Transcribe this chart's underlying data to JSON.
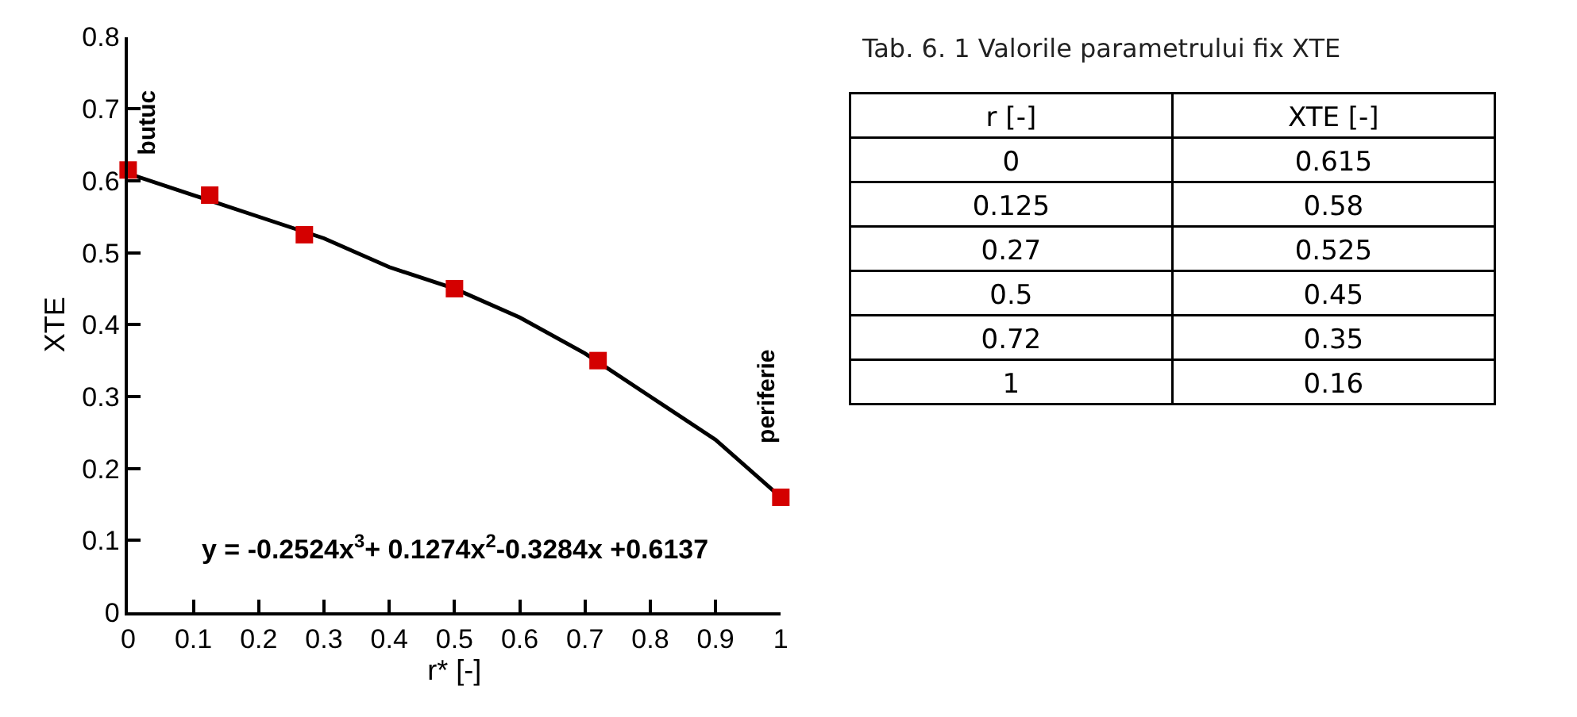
{
  "chart_data": [
    {
      "type": "scatter",
      "xlabel": "r* [-]",
      "ylabel": "XTE",
      "xlim": [
        0,
        1
      ],
      "xticks": [
        0,
        0.1,
        0.2,
        0.3,
        0.4,
        0.5,
        0.6,
        0.7,
        0.8,
        0.9,
        1
      ],
      "ylim": [
        0,
        0.8
      ],
      "yticks": [
        0,
        0.1,
        0.2,
        0.3,
        0.4,
        0.5,
        0.6,
        0.7,
        0.8
      ],
      "series": [
        {
          "type": "line",
          "color": "#000000",
          "marker": "none",
          "line_style": "solid",
          "x": [
            0,
            0.1,
            0.2,
            0.3,
            0.4,
            0.5,
            0.6,
            0.7,
            0.8,
            0.9,
            1
          ],
          "values": [
            0.61,
            0.58,
            0.55,
            0.52,
            0.48,
            0.45,
            0.41,
            0.36,
            0.3,
            0.24,
            0.16
          ]
        },
        {
          "type": "scatter",
          "color": "#d40000",
          "marker": "square",
          "x": [
            0,
            0.125,
            0.27,
            0.5,
            0.72,
            1
          ],
          "values": [
            0.615,
            0.58,
            0.525,
            0.45,
            0.35,
            0.16
          ]
        }
      ],
      "annotations": [
        "y = -0.2524x$^{3}$+ 0.1274x$^{2}$-0.3284x +0.6137",
        "butuc",
        "periferie"
      ]
    },
    {
      "type": "other",
      "title": "Tab. 6. 1 Valorile parametrului fix XTE",
      "annotations": [
        "r [-]",
        "XTE [-]",
        "0",
        "0.615",
        "0.125",
        "0.58",
        "0.27",
        "0.525",
        "0.5",
        "0.45",
        "0.72",
        "0.35",
        "1",
        "0.16"
      ]
    }
  ]
}
